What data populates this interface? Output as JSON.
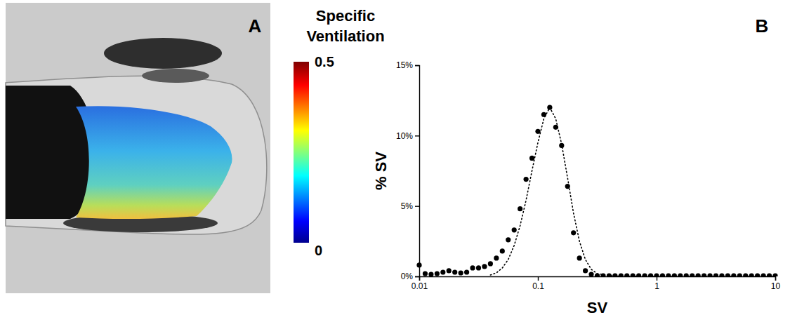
{
  "chart_data": [
    {
      "type": "image",
      "panel": "A",
      "colorbar": {
        "title": "Specific Ventilation",
        "range": [
          0,
          0.5
        ],
        "ticks": [
          0,
          0.5
        ]
      }
    },
    {
      "type": "scatter",
      "panel": "B",
      "x_label": "SV",
      "y_label": "% SV",
      "log": "x",
      "xlim": [
        0.01,
        10
      ],
      "xticks": [
        0.01,
        0.1,
        1,
        10
      ],
      "ylim": [
        0,
        15
      ],
      "yticks": [
        {
          "value": 0,
          "label": "0%"
        },
        {
          "value": 5,
          "label": "5%"
        },
        {
          "value": 10,
          "label": "10%"
        },
        {
          "value": 15,
          "label": "15%"
        }
      ],
      "series": [
        {
          "type": "scatter",
          "marker": "circle",
          "color": "#000000",
          "x": [
            0.01,
            0.01122,
            0.01259,
            0.01413,
            0.01585,
            0.01778,
            0.01995,
            0.02239,
            0.02512,
            0.02818,
            0.03162,
            0.03548,
            0.03981,
            0.04467,
            0.05012,
            0.05623,
            0.0631,
            0.07079,
            0.07943,
            0.08913,
            0.1,
            0.1122,
            0.1259,
            0.1413,
            0.1585,
            0.1778,
            0.1995,
            0.2239,
            0.2512,
            0.2818,
            0.3162,
            0.3548,
            0.3981,
            0.4467,
            0.5012,
            0.5623,
            0.631,
            0.7079,
            0.7943,
            0.8913,
            1,
            1.122,
            1.259,
            1.413,
            1.585,
            1.778,
            1.995,
            2.239,
            2.512,
            2.818,
            3.162,
            3.548,
            3.981,
            4.467,
            5.012,
            5.623,
            6.31,
            7.079,
            7.943,
            8.913,
            10
          ],
          "values": [
            0.8,
            0.2,
            0.15,
            0.2,
            0.3,
            0.4,
            0.3,
            0.25,
            0.3,
            0.6,
            0.6,
            0.7,
            0.9,
            1.3,
            1.8,
            2.6,
            3.3,
            4.8,
            6.9,
            8.4,
            10.3,
            11.5,
            12,
            10.6,
            9.3,
            6.4,
            3.1,
            1.3,
            0.4,
            0.15,
            0.05,
            0.05,
            0.05,
            0.05,
            0.05,
            0.05,
            0.05,
            0.05,
            0.05,
            0.05,
            0.05,
            0.05,
            0.05,
            0.05,
            0.05,
            0.05,
            0.05,
            0.05,
            0.05,
            0.05,
            0.05,
            0.05,
            0.05,
            0.05,
            0.05,
            0.05,
            0.05,
            0.05,
            0.05,
            0.05,
            0.05
          ]
        },
        {
          "type": "line",
          "line_style": "dotted",
          "color": "#000000",
          "x": [
            0.03981,
            0.04467,
            0.05012,
            0.05623,
            0.0631,
            0.07079,
            0.07943,
            0.08913,
            0.1,
            0.1122,
            0.1259,
            0.1413,
            0.1585,
            0.1778,
            0.1995,
            0.2239,
            0.2512,
            0.2818,
            0.3162,
            0.3981,
            0.5012,
            1,
            10
          ],
          "values": [
            0.1,
            0.25,
            0.6,
            1.2,
            2.2,
            3.6,
            5.4,
            7.5,
            9.5,
            11.2,
            12,
            11.2,
            9.4,
            7,
            4.5,
            2.5,
            1.2,
            0.5,
            0.2,
            0.05,
            0.02,
            0,
            0
          ]
        }
      ]
    }
  ]
}
